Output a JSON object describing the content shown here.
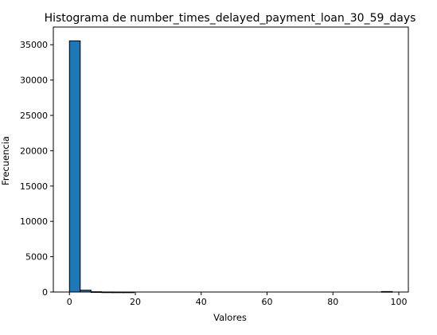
{
  "chart_data": {
    "type": "bar",
    "title": "Histograma de number_times_delayed_payment_loan_30_59_days",
    "xlabel": "Valores",
    "ylabel": "Frecuencia",
    "xlim": [
      -4.9,
      102.9
    ],
    "ylim": [
      0,
      37500
    ],
    "xticks": [
      0,
      20,
      40,
      60,
      80,
      100
    ],
    "yticks": [
      0,
      5000,
      10000,
      15000,
      20000,
      25000,
      30000,
      35000
    ],
    "bin_start": 0,
    "bin_width": 3.2667,
    "counts": [
      35550,
      260,
      40,
      8,
      2,
      1,
      0,
      0,
      0,
      0,
      0,
      0,
      0,
      0,
      0,
      0,
      0,
      0,
      0,
      0,
      0,
      0,
      0,
      0,
      0,
      0,
      0,
      0,
      0,
      70
    ],
    "bar_color": "#1f77b4",
    "edge_color": "#000000",
    "grid": false
  }
}
